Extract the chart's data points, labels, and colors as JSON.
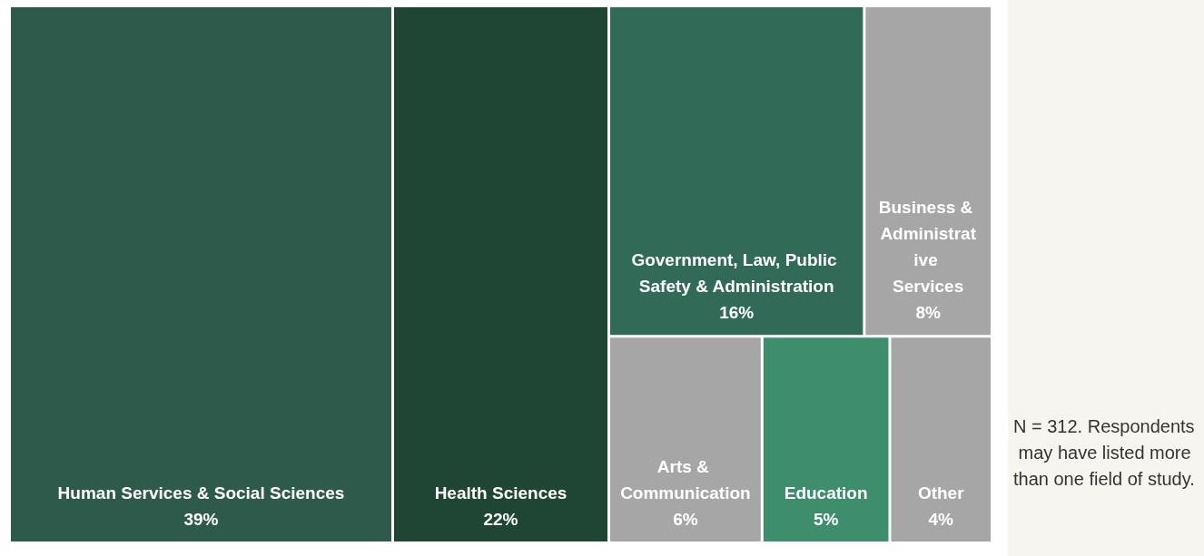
{
  "chart_data": {
    "type": "other",
    "categories": [
      "Human Services & Social Sciences",
      "Health Sciences",
      "Government, Law, Public Safety & Administration",
      "Business & Administrative Services",
      "Arts & Communication",
      "Education",
      "Other"
    ],
    "values": [
      39,
      22,
      16,
      8,
      6,
      5,
      4
    ],
    "value_labels": [
      "39%",
      "22%",
      "16%",
      "8%",
      "6%",
      "5%",
      "4%"
    ],
    "colors": [
      "#2d5a4a",
      "#1f4535",
      "#316b57",
      "#a6a6a6",
      "#a6a6a6",
      "#3e8e6e",
      "#a6a6a6"
    ],
    "annotations": [
      "N = 312. Respondents may have listed more than one field of study."
    ]
  }
}
